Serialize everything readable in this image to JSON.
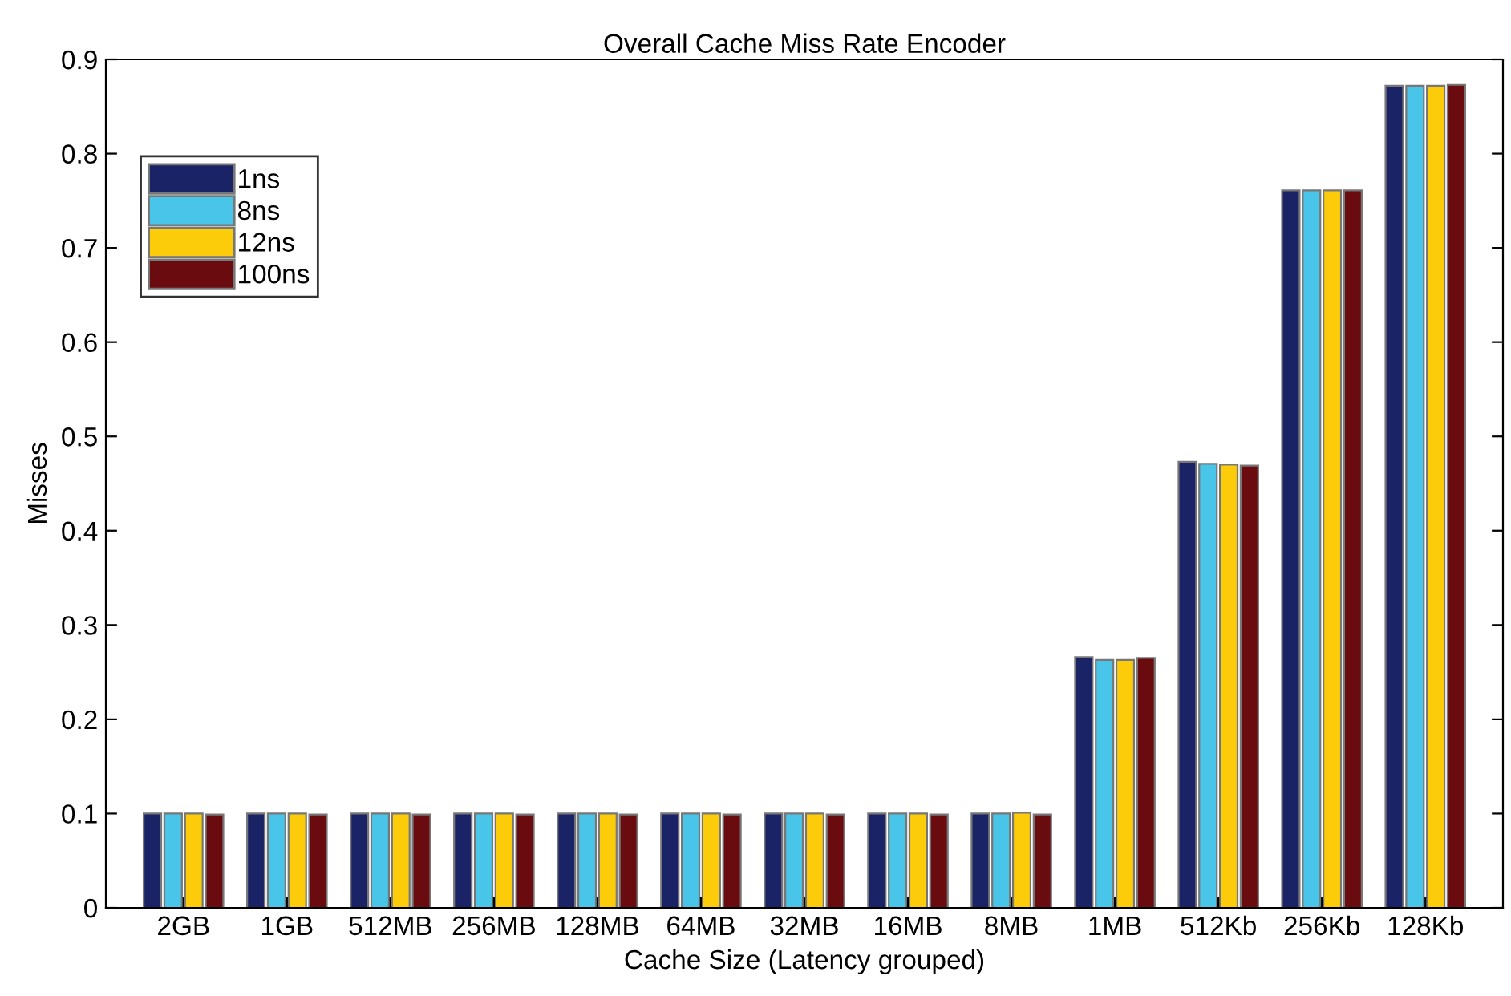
{
  "chart_data": {
    "type": "bar",
    "title": "Overall Cache Miss Rate Encoder",
    "xlabel": "Cache Size (Latency grouped)",
    "ylabel": "Misses",
    "categories": [
      "2GB",
      "1GB",
      "512MB",
      "256MB",
      "128MB",
      "64MB",
      "32MB",
      "16MB",
      "8MB",
      "1MB",
      "512Kb",
      "256Kb",
      "128Kb"
    ],
    "series": [
      {
        "name": "1ns",
        "color": "#1b2367",
        "values": [
          0.1,
          0.1,
          0.1,
          0.1,
          0.1,
          0.1,
          0.1,
          0.1,
          0.1,
          0.266,
          0.473,
          0.761,
          0.872
        ]
      },
      {
        "name": "8ns",
        "color": "#48c5e8",
        "values": [
          0.1,
          0.1,
          0.1,
          0.1,
          0.1,
          0.1,
          0.1,
          0.1,
          0.1,
          0.263,
          0.471,
          0.761,
          0.872
        ]
      },
      {
        "name": "12ns",
        "color": "#fccb0a",
        "values": [
          0.1,
          0.1,
          0.1,
          0.1,
          0.1,
          0.1,
          0.1,
          0.1,
          0.101,
          0.263,
          0.47,
          0.761,
          0.872
        ]
      },
      {
        "name": "100ns",
        "color": "#6a0c0f",
        "values": [
          0.099,
          0.099,
          0.099,
          0.099,
          0.099,
          0.099,
          0.099,
          0.099,
          0.099,
          0.265,
          0.469,
          0.761,
          0.873
        ]
      }
    ],
    "ylim": [
      0,
      0.9
    ],
    "yticks": [
      0,
      0.1,
      0.2,
      0.3,
      0.4,
      0.5,
      0.6,
      0.7,
      0.8,
      0.9
    ],
    "legend": "top left",
    "grid": false
  }
}
